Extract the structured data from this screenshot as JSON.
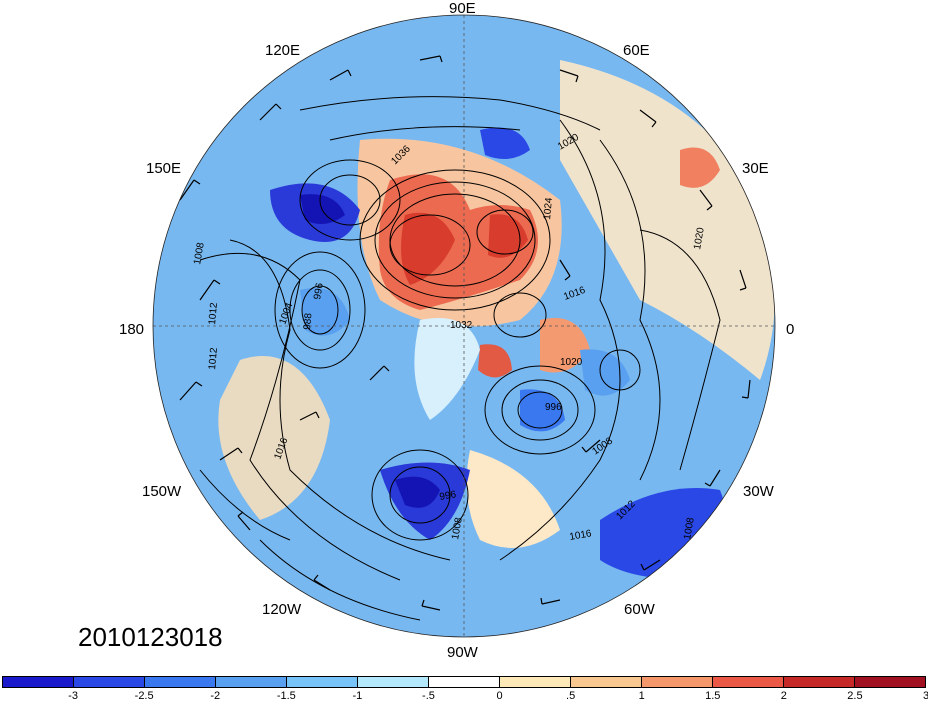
{
  "timestamp": "2010123018",
  "longitude_labels": {
    "lon_90e": "90E",
    "lon_120e": "120E",
    "lon_60e": "60E",
    "lon_150e": "150E",
    "lon_30e": "30E",
    "lon_180": "180",
    "lon_0": "0",
    "lon_150w": "150W",
    "lon_30w": "30W",
    "lon_120w": "120W",
    "lon_60w": "60W",
    "lon_90w": "90W"
  },
  "contour_labels": [
    "1036",
    "1020",
    "1008",
    "1024",
    "1016",
    "996",
    "1004",
    "988",
    "1012",
    "1032",
    "1020",
    "996",
    "1008",
    "1020",
    "1016",
    "1012",
    "996",
    "1008",
    "1012",
    "1008",
    "1016"
  ],
  "colorbar": {
    "ticks": [
      "-3",
      "-2.5",
      "-2",
      "-1.5",
      "-1",
      "-.5",
      "0",
      ".5",
      "1",
      "1.5",
      "2",
      "2.5",
      "3"
    ],
    "colors": [
      "#1a1acc",
      "#2a48e6",
      "#3a78f0",
      "#5aa0f0",
      "#78c4f8",
      "#b4e8fc",
      "#ffffff",
      "#fde8b8",
      "#f8c890",
      "#f4986c",
      "#ec5846",
      "#c62828",
      "#a01020"
    ]
  }
}
